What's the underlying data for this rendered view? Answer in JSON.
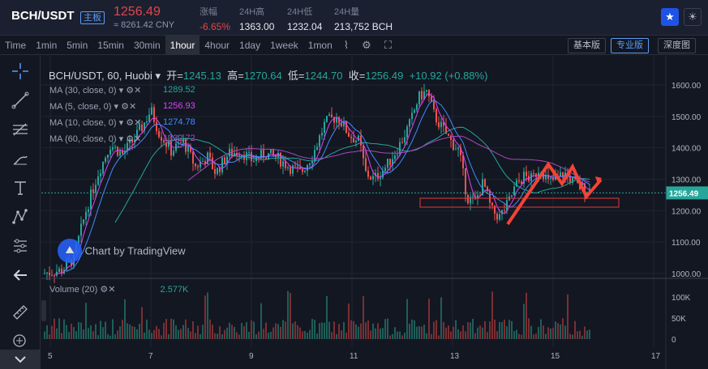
{
  "header": {
    "pair": "BCH/USDT",
    "board": "主板",
    "last": "1256.49",
    "cny": "≈ 8261.42 CNY",
    "change_label": "涨幅",
    "change_value": "-6.65%",
    "high_label": "24H高",
    "high_value": "1363.00",
    "low_label": "24H低",
    "low_value": "1232.04",
    "vol_label": "24H量",
    "vol_value": "213,752 BCH"
  },
  "toolbar": {
    "intervals": [
      "Time",
      "1min",
      "5min",
      "15min",
      "30min",
      "1hour",
      "4hour",
      "1day",
      "1week",
      "1mon"
    ],
    "active_interval": "1hour",
    "view_basic": "基本版",
    "view_pro": "专业版",
    "view_depth": "深度图"
  },
  "legend": {
    "symbol": "BCH/USDT, 60, Huobi",
    "open_label": "开=",
    "open": "1245.13",
    "high_label": "高=",
    "high": "1270.64",
    "low_label": "低=",
    "low": "1244.70",
    "close_label": "收=",
    "close": "1256.49",
    "change": "+10.92 (+0.88%)",
    "ma": [
      {
        "label": "MA (30, close, 0)",
        "value": "1289.52",
        "color": "#26a69a"
      },
      {
        "label": "MA (5, close, 0)",
        "value": "1256.93",
        "color": "#e040fb"
      },
      {
        "label": "MA (10, close, 0)",
        "value": "1274.78",
        "color": "#448aff"
      },
      {
        "label": "MA (60, close, 0)",
        "value": "1332.72",
        "color": "#ab47bc"
      }
    ],
    "volume_label": "Volume (20)",
    "volume_value": "2.577K",
    "watermark": "Chart by TradingView"
  },
  "price_axis": [
    "1600.00",
    "1500.00",
    "1400.00",
    "1300.00",
    "1200.00",
    "1100.00",
    "1000.00"
  ],
  "current_price_tag": "1256.49",
  "volume_axis": [
    "100K",
    "50K",
    "0"
  ],
  "time_axis": [
    "5",
    "7",
    "9",
    "11",
    "13",
    "15",
    "17"
  ],
  "colors": {
    "up": "#26a69a",
    "down": "#ef5350",
    "accent": "#5b9cf6",
    "bg": "#131722"
  },
  "tools": [
    "crosshair-icon",
    "trendline-icon",
    "fib-icon",
    "brush-icon",
    "text-icon",
    "pattern-icon",
    "measure-icon",
    "back-icon",
    "ruler-icon",
    "zoom-icon"
  ]
}
